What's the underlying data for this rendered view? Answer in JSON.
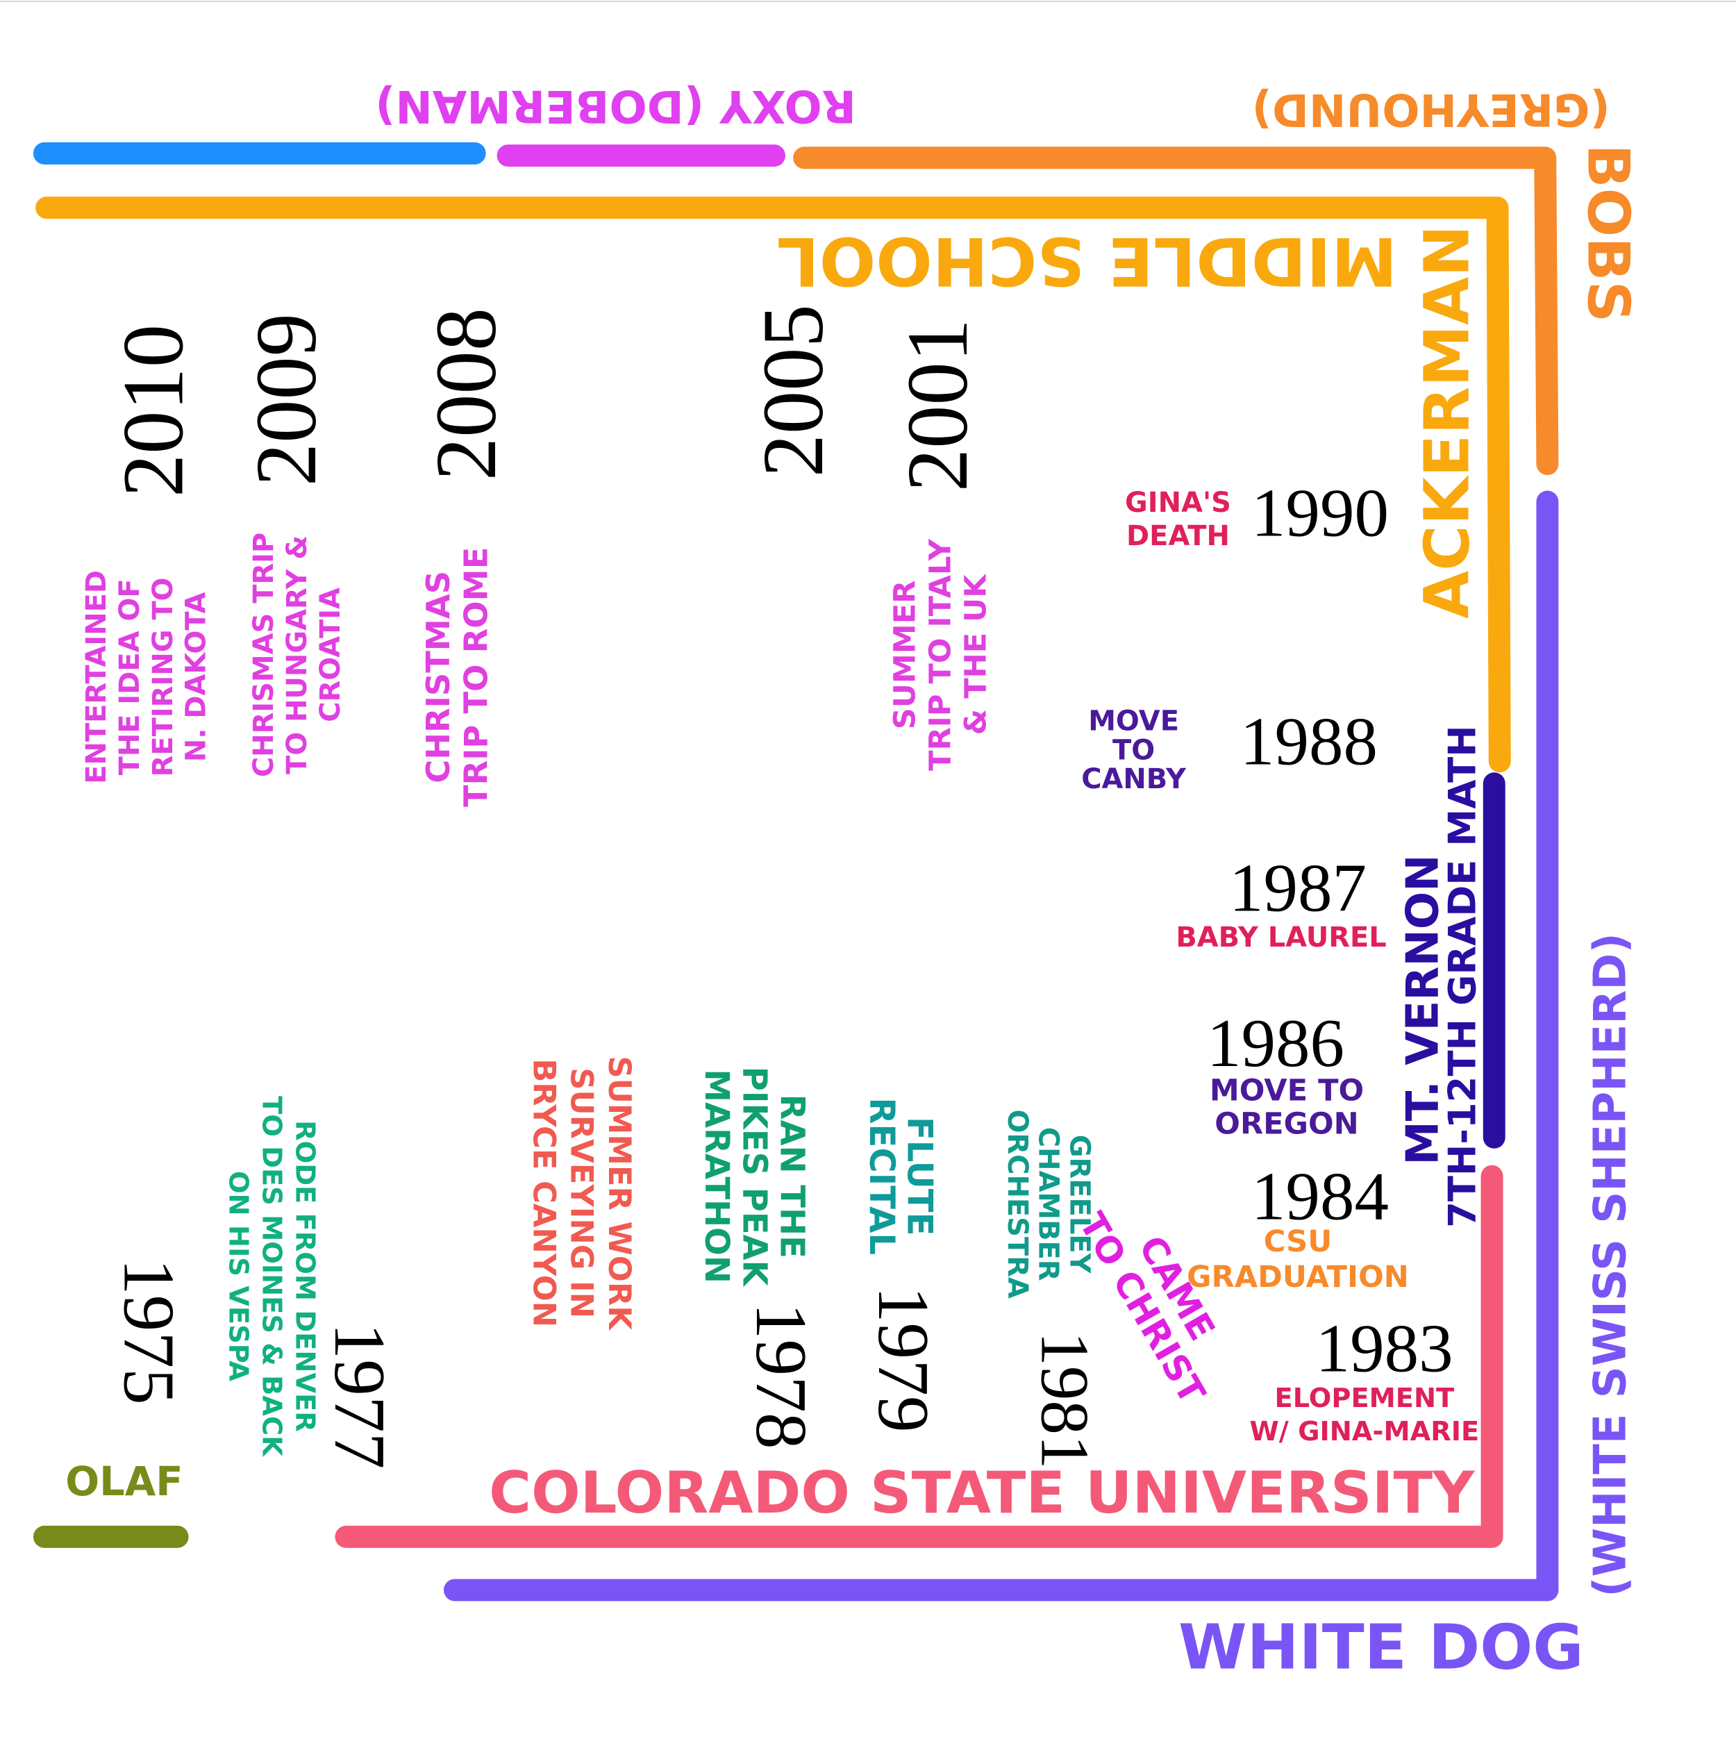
{
  "labels": [
    "ROXY (DOBERMAN)",
    "(GREYHOUND)",
    "BOBS",
    "MIDDLE SCHOOL",
    "ACKERMAN",
    "MT. VERNON",
    "7TH-12TH GRADE MATH",
    "(WHITE SWISS SHEPHERD)",
    "WHITE DOG",
    "COLORADO STATE UNIVERSITY",
    "OLAF"
  ],
  "events": [
    {
      "year": "2010",
      "notes": [
        [
          "ENTERTAINED",
          "THE IDEA OF",
          "RETIRING TO",
          "N. DAKOTA"
        ]
      ]
    },
    {
      "year": "2009",
      "notes": [
        [
          "CHRISMAS TRIP",
          "TO HUNGARY &",
          "CROATIA"
        ]
      ]
    },
    {
      "year": "2008",
      "notes": [
        [
          "CHRISTMAS",
          "TRIP TO ROME"
        ]
      ]
    },
    {
      "year": "2005",
      "notes": []
    },
    {
      "year": "2001",
      "notes": [
        [
          "SUMMER",
          "TRIP TO ITALY",
          "& THE UK"
        ]
      ]
    },
    {
      "year": "1990",
      "notes": [
        [
          "GINA'S",
          "DEATH"
        ]
      ]
    },
    {
      "year": "1988",
      "notes": [
        [
          "MOVE",
          "TO",
          "CANBY"
        ]
      ]
    },
    {
      "year": "1987",
      "notes": [
        [
          "BABY LAUREL"
        ]
      ]
    },
    {
      "year": "1986",
      "notes": [
        [
          "MOVE TO",
          "OREGON"
        ]
      ]
    },
    {
      "year": "1984",
      "notes": [
        [
          "CSU",
          "GRADUATION"
        ]
      ]
    },
    {
      "year": "1983",
      "notes": [
        [
          "ELOPEMENT",
          "W/ GINA-MARIE"
        ]
      ]
    },
    {
      "year": "1981",
      "notes": [
        [
          "GREELEY",
          "CHAMBER",
          "ORCHESTRA"
        ],
        [
          "CAME",
          "TO CHRIST"
        ]
      ]
    },
    {
      "year": "1979",
      "notes": [
        [
          "FLUTE",
          "RECITAL"
        ]
      ]
    },
    {
      "year": "1978",
      "notes": [
        [
          "RAN THE",
          "PIKES PEAK",
          "MARATHON"
        ],
        [
          "SUMMER WORK",
          "SURVEYING IN",
          "BRYCE CANYON"
        ]
      ]
    },
    {
      "year": "1977",
      "notes": [
        [
          "RODE FROM DENVER",
          "TO DES MOINES & BACK",
          "ON HIS VESPA"
        ]
      ]
    },
    {
      "year": "1975",
      "notes": []
    }
  ]
}
